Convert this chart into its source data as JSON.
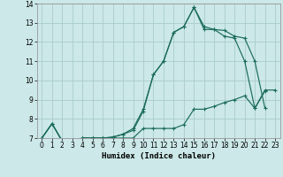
{
  "title": "",
  "xlabel": "Humidex (Indice chaleur)",
  "ylabel": "",
  "background_color": "#cce8e8",
  "grid_color": "#aacccc",
  "line_color": "#1a6b5a",
  "xlim": [
    -0.5,
    23.5
  ],
  "ylim": [
    7,
    14
  ],
  "yticks": [
    7,
    8,
    9,
    10,
    11,
    12,
    13,
    14
  ],
  "xticks": [
    0,
    1,
    2,
    3,
    4,
    5,
    6,
    7,
    8,
    9,
    10,
    11,
    12,
    13,
    14,
    15,
    16,
    17,
    18,
    19,
    20,
    21,
    22,
    23
  ],
  "line1_x": [
    0,
    1,
    2,
    3,
    4,
    5,
    6,
    7,
    8,
    9,
    10,
    11,
    12,
    13,
    14,
    15,
    16,
    17,
    18,
    19,
    20,
    21,
    22,
    23
  ],
  "line1_y": [
    7.0,
    7.75,
    6.85,
    6.8,
    7.0,
    7.0,
    7.0,
    7.0,
    7.0,
    7.0,
    7.5,
    7.5,
    7.5,
    7.5,
    7.7,
    8.5,
    8.5,
    8.65,
    8.85,
    9.0,
    9.2,
    8.55,
    9.5,
    9.5
  ],
  "line2_x": [
    0,
    1,
    2,
    3,
    4,
    5,
    6,
    7,
    8,
    9,
    10,
    11,
    12,
    13,
    14,
    15,
    16,
    17,
    18,
    19,
    20,
    21,
    22
  ],
  "line2_y": [
    7.0,
    7.75,
    6.85,
    6.8,
    7.0,
    7.0,
    7.0,
    7.05,
    7.2,
    7.5,
    8.5,
    10.3,
    11.0,
    12.5,
    12.8,
    13.8,
    12.8,
    12.65,
    12.6,
    12.3,
    12.2,
    11.0,
    8.55
  ],
  "line3_x": [
    0,
    1,
    2,
    3,
    4,
    5,
    6,
    7,
    8,
    9,
    10,
    11,
    12,
    13,
    14,
    15,
    16,
    17,
    18,
    19,
    20,
    21,
    22
  ],
  "line3_y": [
    7.0,
    7.75,
    6.85,
    6.8,
    7.0,
    7.0,
    7.0,
    7.05,
    7.2,
    7.4,
    8.4,
    10.3,
    11.0,
    12.5,
    12.8,
    13.8,
    12.65,
    12.65,
    12.3,
    12.2,
    11.0,
    8.55,
    9.45
  ]
}
